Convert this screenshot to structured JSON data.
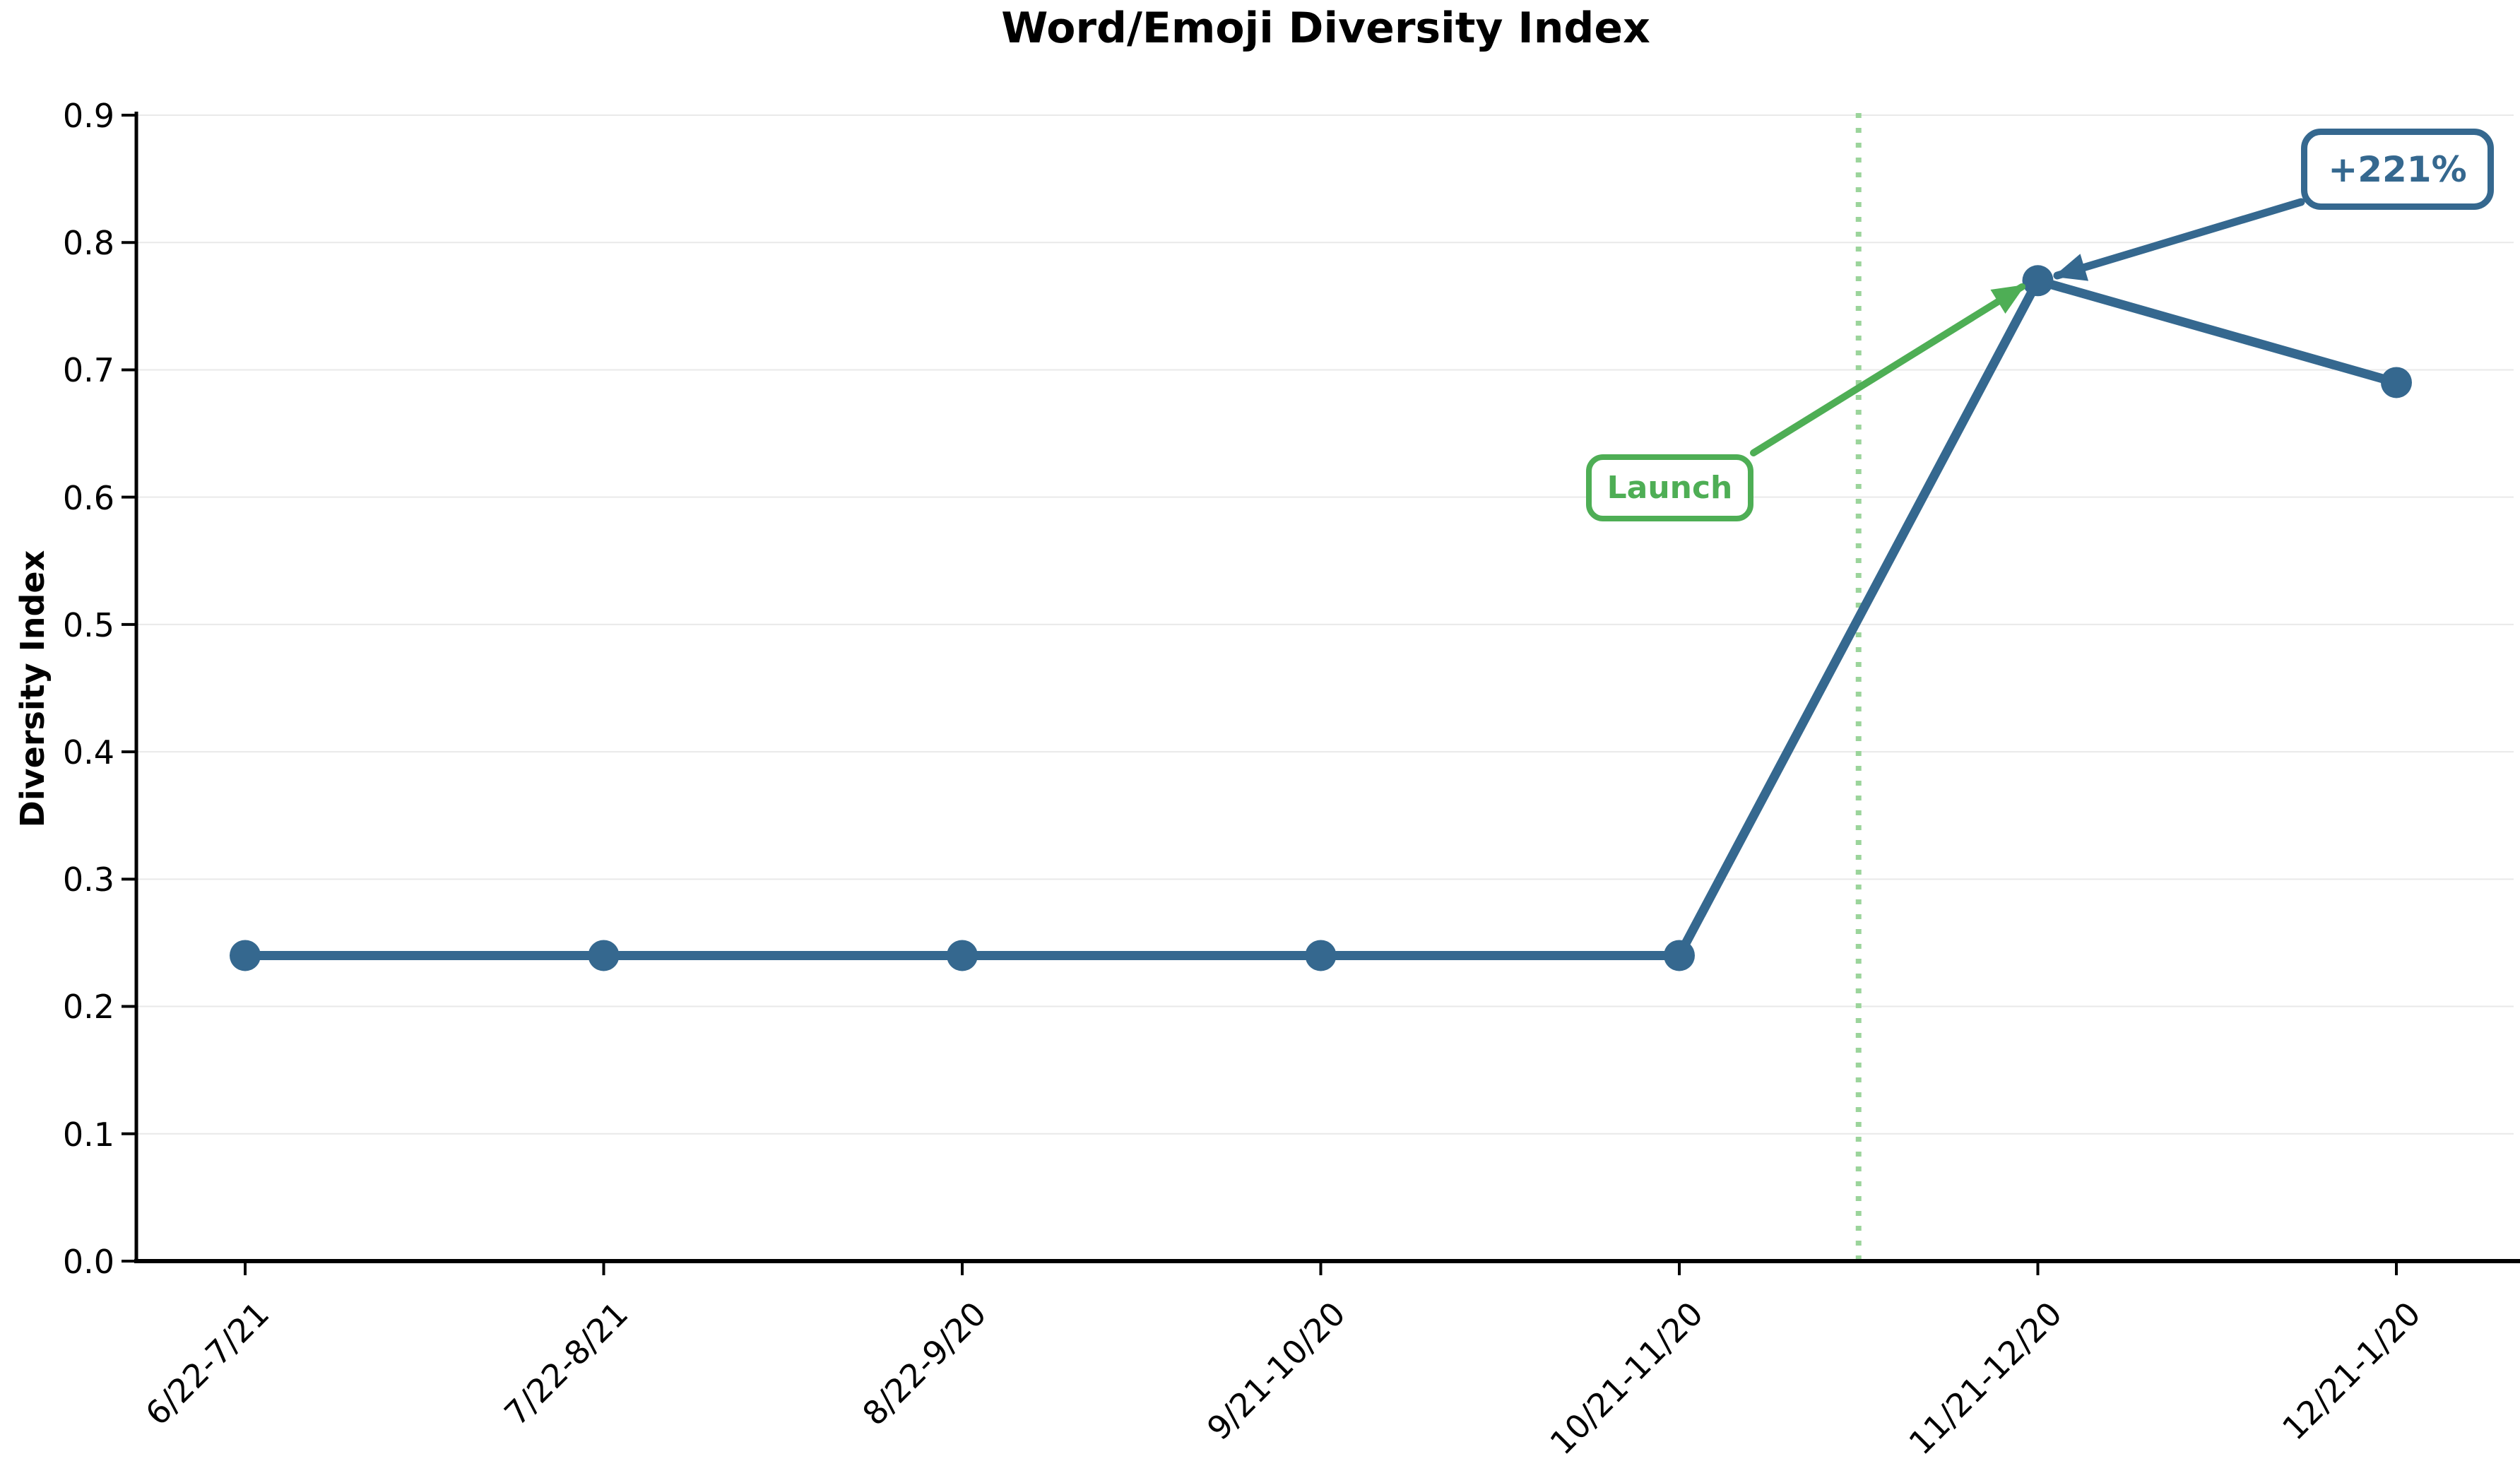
{
  "page": {
    "background": "#FFFFFF"
  },
  "chart_data": {
    "type": "line",
    "title": "Word/Emoji Diversity Index",
    "xlabel": "",
    "ylabel": "Diversity Index",
    "categories": [
      "6/22-7/21",
      "7/22-8/21",
      "8/22-9/20",
      "9/21-10/20",
      "10/21-11/20",
      "11/21-12/20",
      "12/21-1/20"
    ],
    "series": [
      {
        "name": "Word/Emoji Diversity Index",
        "values": [
          0.24,
          0.24,
          0.24,
          0.24,
          0.24,
          0.77,
          0.69
        ],
        "color": "#35688F",
        "marker": "circle",
        "line_width": 13
      }
    ],
    "ylim": [
      0.0,
      0.9
    ],
    "yticks": [
      0.0,
      0.1,
      0.2,
      0.3,
      0.4,
      0.5,
      0.6,
      0.7,
      0.8,
      0.9
    ],
    "ytick_labels": [
      "0.0",
      "0.1",
      "0.2",
      "0.3",
      "0.4",
      "0.5",
      "0.6",
      "0.7",
      "0.8",
      "0.9"
    ],
    "grid": {
      "horizontal": true,
      "vertical": false,
      "color": "#E9E9E9"
    },
    "legend": "none",
    "vline": {
      "x_index": 4.5,
      "between": [
        "10/21-11/20",
        "11/21-12/20"
      ],
      "style": "dotted",
      "color": "#9BD49B"
    },
    "annotations": [
      {
        "id": "launch",
        "text": "Launch",
        "color": "#4EAE55",
        "arrow_to": {
          "category": "11/21-12/20",
          "value": 0.77
        }
      },
      {
        "id": "growth",
        "text": "+221%",
        "color": "#35688F",
        "arrow_to": {
          "category": "11/21-12/20",
          "value": 0.77
        }
      }
    ]
  }
}
